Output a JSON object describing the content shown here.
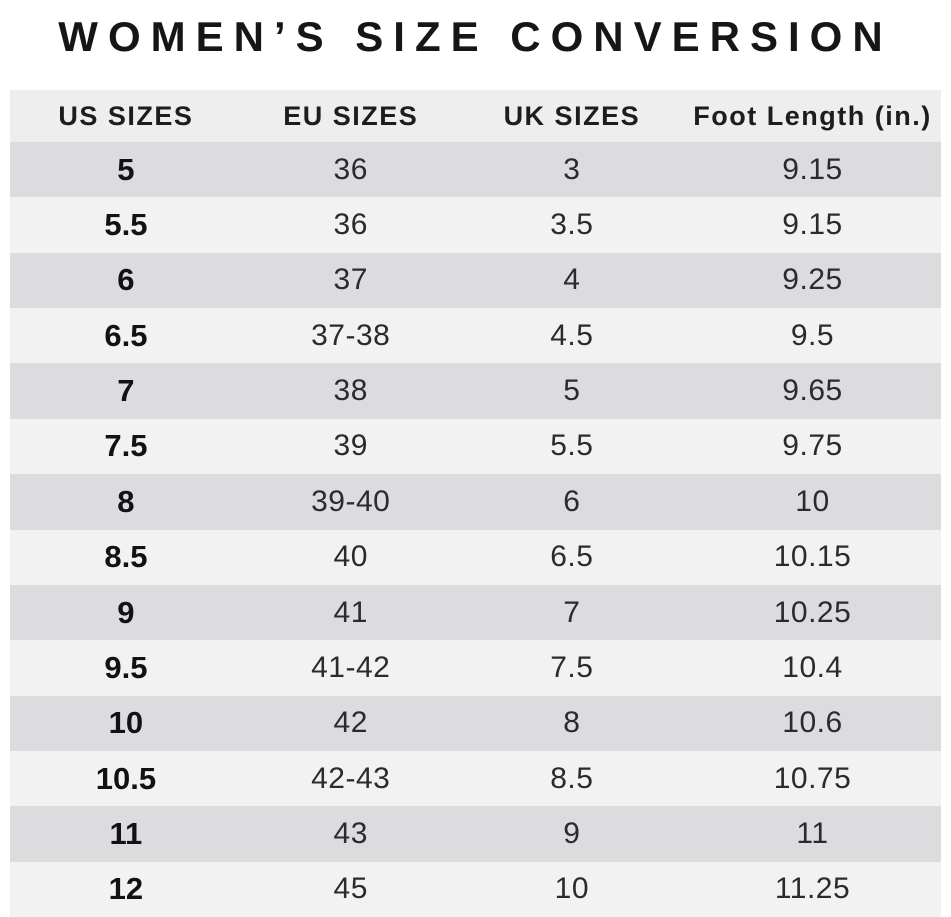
{
  "title": "WOMEN’S SIZE CONVERSION",
  "table": {
    "headers": [
      "US SIZES",
      "EU SIZES",
      "UK SIZES",
      "Foot Length (in.)"
    ],
    "rows": [
      [
        "5",
        "36",
        "3",
        "9.15"
      ],
      [
        "5.5",
        "36",
        "3.5",
        "9.15"
      ],
      [
        "6",
        "37",
        "4",
        "9.25"
      ],
      [
        "6.5",
        "37-38",
        "4.5",
        "9.5"
      ],
      [
        "7",
        "38",
        "5",
        "9.65"
      ],
      [
        "7.5",
        "39",
        "5.5",
        "9.75"
      ],
      [
        "8",
        "39-40",
        "6",
        "10"
      ],
      [
        "8.5",
        "40",
        "6.5",
        "10.15"
      ],
      [
        "9",
        "41",
        "7",
        "10.25"
      ],
      [
        "9.5",
        "41-42",
        "7.5",
        "10.4"
      ],
      [
        "10",
        "42",
        "8",
        "10.6"
      ],
      [
        "10.5",
        "42-43",
        "8.5",
        "10.75"
      ],
      [
        "11",
        "43",
        "9",
        "11"
      ],
      [
        "12",
        "45",
        "10",
        "11.25"
      ]
    ]
  },
  "colors": {
    "background": "#ffffff",
    "title_text": "#161616",
    "header_bg": "#efeeef",
    "row_dark": "#dcdcde",
    "row_light": "#f2f2f3",
    "cell_text": "#2b2b2e",
    "us_col_text": "#121214"
  },
  "chart_data": {
    "type": "table",
    "title": "WOMEN’S SIZE CONVERSION",
    "columns": [
      "US SIZES",
      "EU SIZES",
      "UK SIZES",
      "Foot Length (in.)"
    ],
    "rows": [
      [
        "5",
        "36",
        "3",
        "9.15"
      ],
      [
        "5.5",
        "36",
        "3.5",
        "9.15"
      ],
      [
        "6",
        "37",
        "4",
        "9.25"
      ],
      [
        "6.5",
        "37-38",
        "4.5",
        "9.5"
      ],
      [
        "7",
        "38",
        "5",
        "9.65"
      ],
      [
        "7.5",
        "39",
        "5.5",
        "9.75"
      ],
      [
        "8",
        "39-40",
        "6",
        "10"
      ],
      [
        "8.5",
        "40",
        "6.5",
        "10.15"
      ],
      [
        "9",
        "41",
        "7",
        "10.25"
      ],
      [
        "9.5",
        "41-42",
        "7.5",
        "10.4"
      ],
      [
        "10",
        "42",
        "8",
        "10.6"
      ],
      [
        "10.5",
        "42-43",
        "8.5",
        "10.75"
      ],
      [
        "11",
        "43",
        "9",
        "11"
      ],
      [
        "12",
        "45",
        "10",
        "11.25"
      ]
    ],
    "layout": {
      "header_position": "top",
      "row_striping": "alternating dark/light starting dark",
      "column_alignment": "center"
    }
  }
}
